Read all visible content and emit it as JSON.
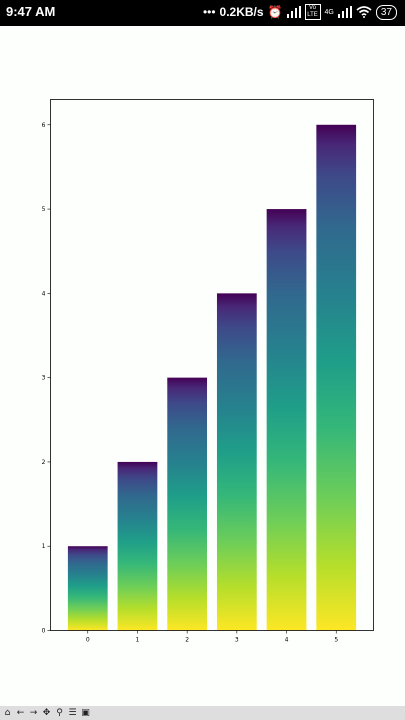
{
  "status_bar": {
    "time": "9:47 AM",
    "net_speed": "0.2KB/s",
    "volte": "Vo LTE",
    "network": "4G",
    "battery": "37"
  },
  "toolbar": {
    "buttons": [
      "home-icon",
      "back-arrow-icon",
      "forward-arrow-icon",
      "pan-icon",
      "zoom-icon",
      "configure-subplots-icon",
      "save-icon"
    ]
  },
  "chart_data": {
    "type": "bar",
    "categories": [
      "0",
      "1",
      "2",
      "3",
      "4",
      "5"
    ],
    "values": [
      1,
      2,
      3,
      4,
      5,
      6
    ],
    "title": "",
    "xlabel": "",
    "ylabel": "",
    "ylim": [
      0,
      6.3
    ],
    "yticks": [
      "0",
      "1",
      "2",
      "3",
      "4",
      "5",
      "6"
    ],
    "grid": false,
    "colormap": "viridis",
    "colors": {
      "top": "#440154",
      "bottom": "#fde725"
    }
  }
}
